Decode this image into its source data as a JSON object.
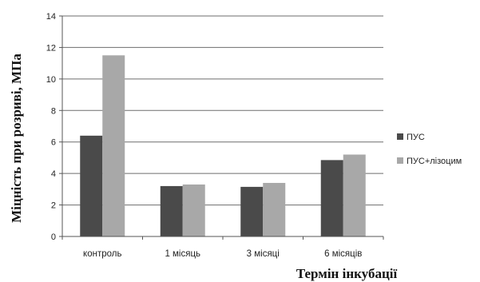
{
  "chart_data": {
    "type": "bar",
    "categories": [
      "контроль",
      "1 місяць",
      "3 місяці",
      "6 місяців"
    ],
    "series": [
      {
        "name": "ПУС",
        "values": [
          6.4,
          3.2,
          3.15,
          4.85
        ],
        "color": "#4a4a4a"
      },
      {
        "name": "ПУС+лізоцим",
        "values": [
          11.5,
          3.3,
          3.4,
          5.2
        ],
        "color": "#a8a8a8"
      }
    ],
    "ylabel": "Міцність при розриві, МПа",
    "xlabel": "Термін інкубації",
    "ylim": [
      0,
      14
    ],
    "yticks": [
      0,
      2,
      4,
      6,
      8,
      10,
      12,
      14
    ],
    "grid": true,
    "legend_position": "right"
  }
}
